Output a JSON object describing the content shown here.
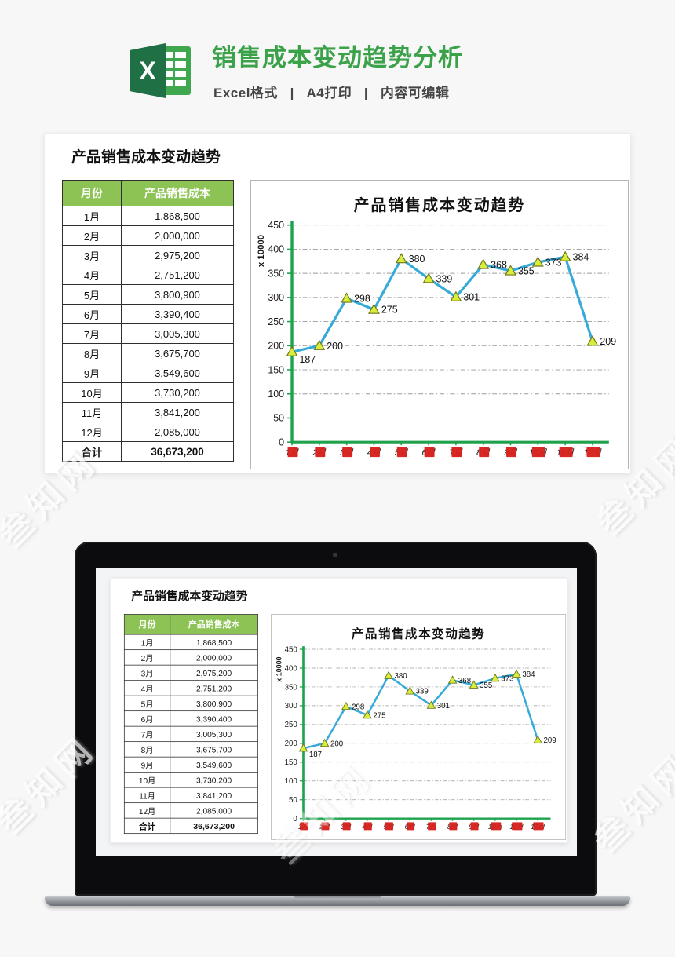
{
  "page": {
    "background": "#f7f7f8",
    "watermark_text": "叁知网"
  },
  "header": {
    "title": "销售成本变动趋势分析",
    "title_color": "#3ca24a",
    "subtitle": "Excel格式   |   A4打印   |   内容可编辑",
    "logo_icon": "excel-logo",
    "logo_colors": {
      "dark_green": "#1f7045",
      "grid_green": "#3fa74e"
    }
  },
  "card": {
    "title": "产品销售成本变动趋势"
  },
  "table": {
    "headers": [
      "月份",
      "产品销售成本"
    ],
    "rows": [
      [
        "1月",
        "1,868,500"
      ],
      [
        "2月",
        "2,000,000"
      ],
      [
        "3月",
        "2,975,200"
      ],
      [
        "4月",
        "2,751,200"
      ],
      [
        "5月",
        "3,800,900"
      ],
      [
        "6月",
        "3,390,400"
      ],
      [
        "7月",
        "3,005,300"
      ],
      [
        "8月",
        "3,675,700"
      ],
      [
        "9月",
        "3,549,600"
      ],
      [
        "10月",
        "3,730,200"
      ],
      [
        "11月",
        "3,841,200"
      ],
      [
        "12月",
        "2,085,000"
      ]
    ],
    "total": [
      "合计",
      "36,673,200"
    ],
    "header_bg": "#8dc355"
  },
  "chart_data": {
    "type": "line",
    "title": "产品销售成本变动趋势",
    "categories": [
      "1月",
      "2月",
      "3月",
      "4月",
      "5月",
      "6月",
      "7月",
      "8月",
      "9月",
      "10月",
      "11月",
      "12月"
    ],
    "values": [
      187,
      200,
      298,
      275,
      380,
      339,
      301,
      368,
      355,
      373,
      384,
      209
    ],
    "data_labels": [
      "187",
      "200",
      "298",
      "275",
      "380",
      "339",
      "301",
      "368",
      "355",
      "373",
      "384",
      "209"
    ],
    "ylabel": "x 10000",
    "xlabel": "",
    "ylim": [
      0,
      450
    ],
    "ytick_step": 50,
    "yticks": [
      0,
      50,
      100,
      150,
      200,
      250,
      300,
      350,
      400,
      450
    ],
    "grid": true,
    "gridline_style": "dash-dot",
    "legend": "none",
    "line_color": "#36aad8",
    "marker": "triangle",
    "marker_fill": "#d9ee3b",
    "marker_stroke": "#71761c",
    "axis_color": "#1ea24c",
    "xlabel_highlight_color": "#d6201c"
  }
}
